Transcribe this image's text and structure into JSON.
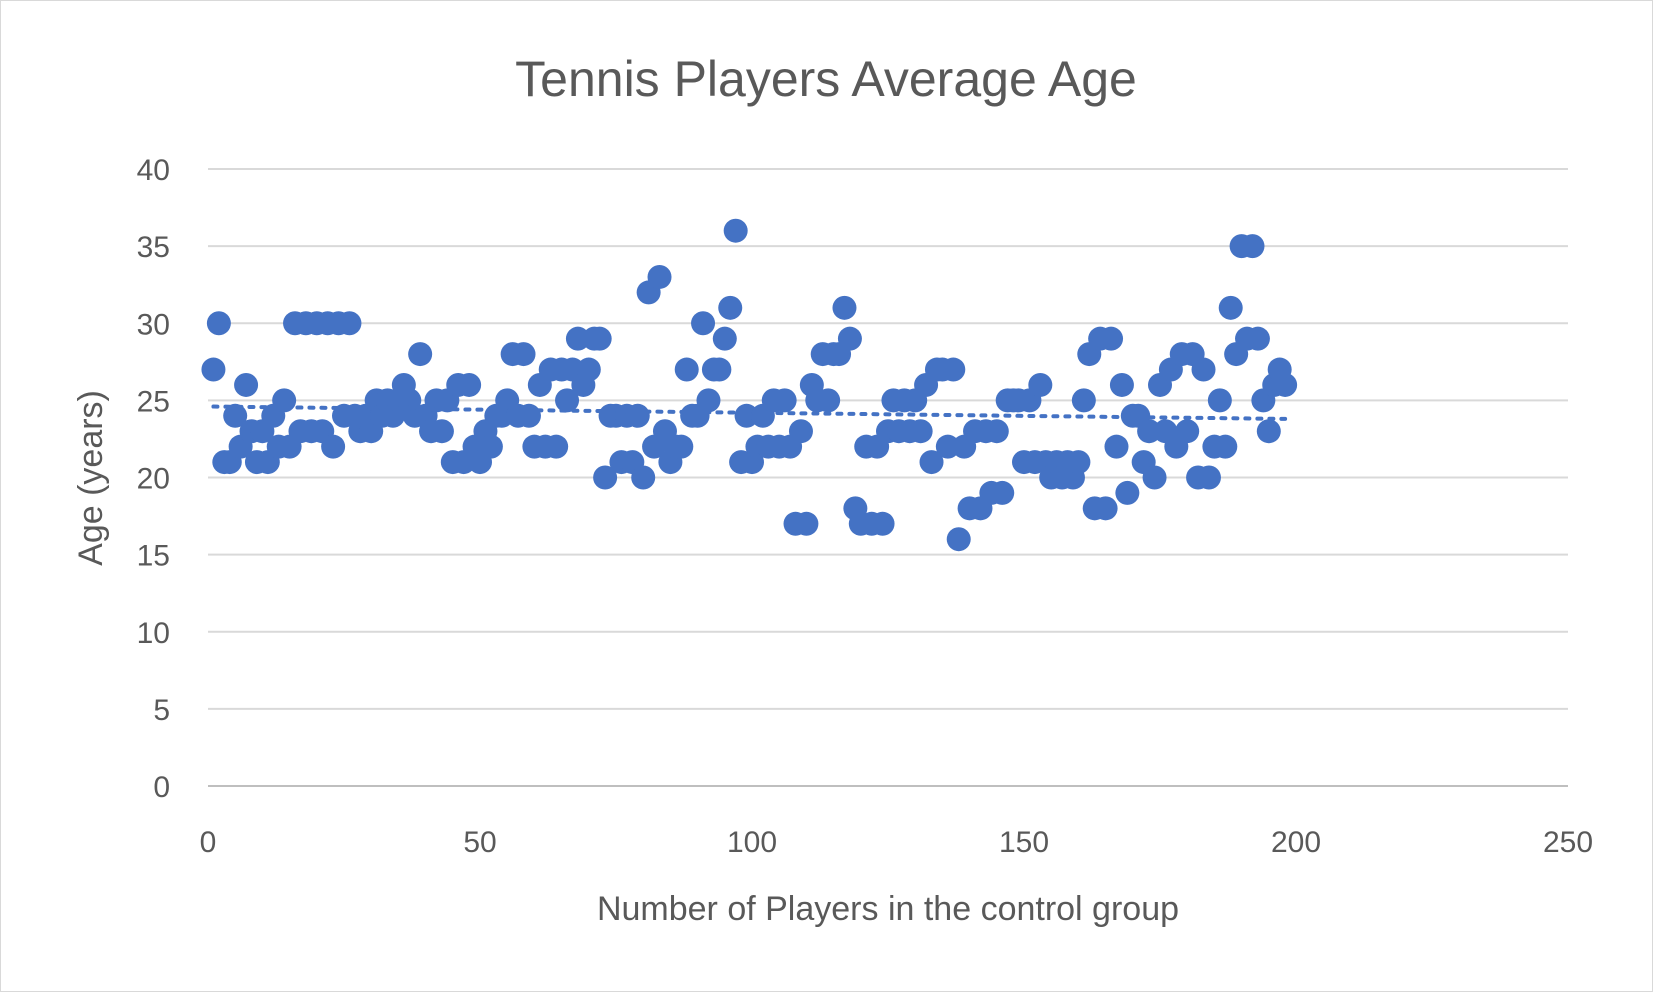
{
  "chart_data": {
    "type": "scatter",
    "title": "Tennis Players Average Age",
    "xlabel": "Number of Players in the control group",
    "ylabel": "Age (years)",
    "xlim": [
      0,
      250
    ],
    "ylim": [
      0,
      40
    ],
    "x_ticks": [
      "0",
      "50",
      "100",
      "150",
      "200",
      "250"
    ],
    "y_ticks": [
      "0",
      "5",
      "10",
      "15",
      "20",
      "25",
      "30",
      "35",
      "40"
    ],
    "grid": "horizontal",
    "legend": "none",
    "marker_color": "#4472c4",
    "trendline": {
      "type": "linear",
      "style": "dotted",
      "color": "#4472c4",
      "x": [
        1,
        198
      ],
      "y": [
        24.6,
        23.8
      ]
    },
    "series": [
      {
        "x": [
          1,
          2,
          3,
          4,
          5,
          6,
          7,
          8,
          9,
          10,
          11,
          12,
          13,
          14,
          15,
          16,
          17,
          18,
          19,
          20,
          21,
          22,
          23,
          24,
          25,
          26,
          27,
          28,
          29,
          30,
          31,
          32,
          33,
          34,
          35,
          36,
          37,
          38,
          39,
          40,
          41,
          42,
          43,
          44,
          45,
          46,
          47,
          48,
          49,
          50,
          51,
          52,
          53,
          54,
          55,
          56,
          57,
          58,
          59,
          60,
          61,
          62,
          63,
          64,
          65,
          66,
          67,
          68,
          69,
          70,
          71,
          72,
          73,
          74,
          75,
          76,
          77,
          78,
          79,
          80,
          81,
          82,
          83,
          84,
          85,
          86,
          87,
          88,
          89,
          90,
          91,
          92,
          93,
          94,
          95,
          96,
          97,
          98,
          99,
          100,
          101,
          102,
          103,
          104,
          105,
          106,
          107,
          108,
          109,
          110,
          111,
          112,
          113,
          114,
          115,
          116,
          117,
          118,
          119,
          120,
          121,
          122,
          123,
          124,
          125,
          126,
          127,
          128,
          129,
          130,
          131,
          132,
          133,
          134,
          135,
          136,
          137,
          138,
          139,
          140,
          141,
          142,
          143,
          144,
          145,
          146,
          147,
          148,
          149,
          150,
          151,
          152,
          153,
          154,
          155,
          156,
          157,
          158,
          159,
          160,
          161,
          162,
          163,
          164,
          165,
          166,
          167,
          168,
          169,
          170,
          171,
          172,
          173,
          174,
          175,
          176,
          177,
          178,
          179,
          180,
          181,
          182,
          183,
          184,
          185,
          186,
          187,
          188,
          189,
          190,
          191,
          192,
          193,
          194,
          195,
          196,
          197,
          198
        ],
        "y": [
          27,
          30,
          21,
          21,
          24,
          22,
          26,
          23,
          21,
          23,
          21,
          24,
          22,
          25,
          22,
          30,
          23,
          30,
          23,
          30,
          23,
          30,
          22,
          30,
          24,
          30,
          24,
          23,
          24,
          23,
          25,
          24,
          25,
          24,
          25,
          26,
          25,
          24,
          28,
          24,
          23,
          25,
          23,
          25,
          21,
          26,
          21,
          26,
          22,
          21,
          23,
          22,
          24,
          24,
          25,
          28,
          24,
          28,
          24,
          22,
          26,
          22,
          27,
          22,
          27,
          25,
          27,
          29,
          26,
          27,
          29,
          29,
          20,
          24,
          24,
          21,
          24,
          21,
          24,
          20,
          32,
          22,
          33,
          23,
          21,
          22,
          22,
          27,
          24,
          24,
          30,
          25,
          27,
          27,
          29,
          31,
          36,
          21,
          24,
          21,
          22,
          24,
          22,
          25,
          22,
          25,
          22,
          17,
          23,
          17,
          26,
          25,
          28,
          25,
          28,
          28,
          31,
          29,
          18,
          17,
          22,
          17,
          22,
          17,
          23,
          25,
          23,
          25,
          23,
          25,
          23,
          26,
          21,
          27,
          27,
          22,
          27,
          16,
          22,
          18,
          23,
          18,
          23,
          19,
          23,
          19,
          25,
          25,
          25,
          21,
          25,
          21,
          26,
          21,
          20,
          21,
          20,
          21,
          20,
          21,
          25,
          28,
          18,
          29,
          18,
          29,
          22,
          26,
          19,
          24,
          24,
          21,
          23,
          20,
          26,
          23,
          27,
          22,
          28,
          23,
          28,
          20,
          27,
          20,
          22,
          25,
          22,
          31,
          28,
          35,
          29,
          35,
          29,
          25,
          23,
          26,
          27,
          26
        ]
      }
    ]
  }
}
